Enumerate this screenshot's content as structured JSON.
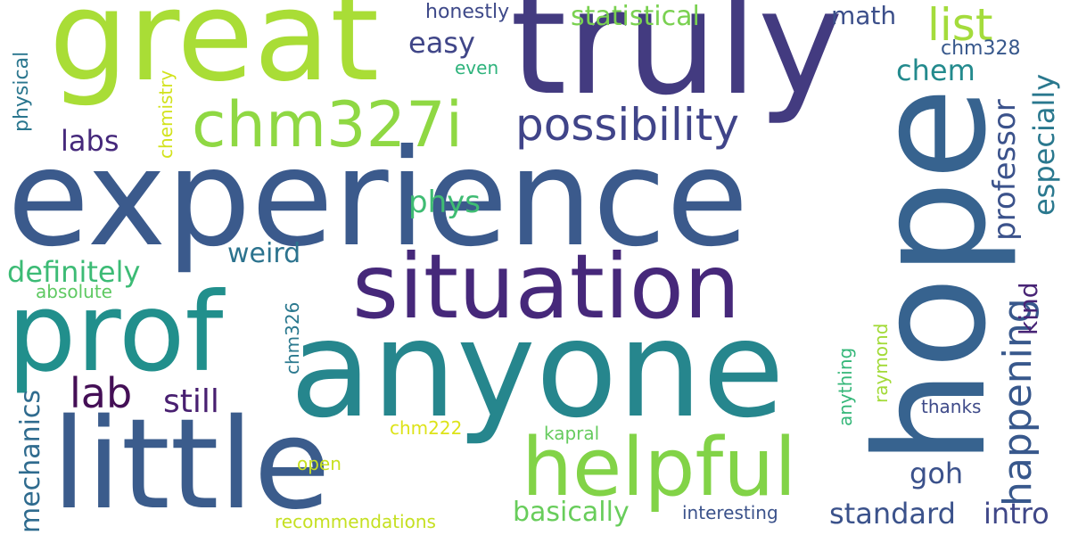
{
  "words": [
    {
      "text": "experience",
      "color": "#3b5a8c"
    },
    {
      "text": "truly",
      "color": "#433b80"
    },
    {
      "text": "hope",
      "color": "#37638f"
    },
    {
      "text": "great",
      "color": "#a9dd36"
    },
    {
      "text": "anyone",
      "color": "#26868d"
    },
    {
      "text": "little",
      "color": "#3b5c8c"
    },
    {
      "text": "prof",
      "color": "#218f8c"
    },
    {
      "text": "situation",
      "color": "#46287a"
    },
    {
      "text": "helpful",
      "color": "#82d347"
    },
    {
      "text": "chm327i",
      "color": "#8fd843"
    },
    {
      "text": "possibility",
      "color": "#404489"
    },
    {
      "text": "list",
      "color": "#a4dc3c"
    },
    {
      "text": "happening",
      "color": "#38588c"
    },
    {
      "text": "professor",
      "color": "#3b528b"
    },
    {
      "text": "especially",
      "color": "#2a788e"
    },
    {
      "text": "lab",
      "color": "#440f56"
    },
    {
      "text": "mechanics",
      "color": "#2f6b8e"
    },
    {
      "text": "definitely",
      "color": "#3cbb75"
    },
    {
      "text": "standard",
      "color": "#3b528b"
    },
    {
      "text": "intro",
      "color": "#3f4788"
    },
    {
      "text": "basically",
      "color": "#68cd5b"
    },
    {
      "text": "still",
      "color": "#481f70"
    },
    {
      "text": "statistical",
      "color": "#7ad151"
    },
    {
      "text": "chem",
      "color": "#238a8d"
    },
    {
      "text": "easy",
      "color": "#404688"
    },
    {
      "text": "labs",
      "color": "#45287b"
    },
    {
      "text": "phys",
      "color": "#3fbc73"
    },
    {
      "text": "weird",
      "color": "#2c738e"
    },
    {
      "text": "math",
      "color": "#3c4f8a"
    },
    {
      "text": "goh",
      "color": "#3b518b"
    },
    {
      "text": "kind",
      "color": "#482475"
    },
    {
      "text": "honestly",
      "color": "#3e4989"
    },
    {
      "text": "chm328",
      "color": "#38588c"
    },
    {
      "text": "even",
      "color": "#2eb37c"
    },
    {
      "text": "physical",
      "color": "#2a768e"
    },
    {
      "text": "chemistry",
      "color": "#d2e21b"
    },
    {
      "text": "absolute",
      "color": "#5ec962"
    },
    {
      "text": "chm326",
      "color": "#2a788e"
    },
    {
      "text": "anything",
      "color": "#35b779"
    },
    {
      "text": "raymond",
      "color": "#a2da37"
    },
    {
      "text": "thanks",
      "color": "#3e4a89"
    },
    {
      "text": "kapral",
      "color": "#65cb5e"
    },
    {
      "text": "chm222",
      "color": "#dde318"
    },
    {
      "text": "open",
      "color": "#c8e020"
    },
    {
      "text": "interesting",
      "color": "#3b528b"
    },
    {
      "text": "recommendations",
      "color": "#c5e021"
    }
  ]
}
